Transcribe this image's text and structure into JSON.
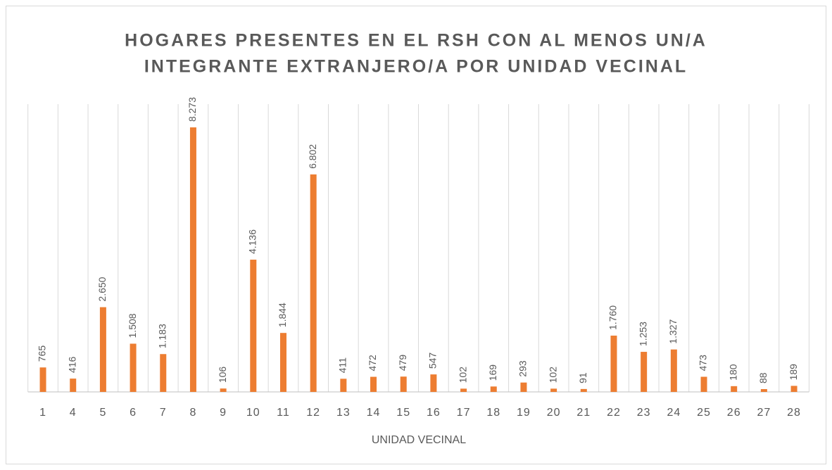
{
  "chart_data": {
    "type": "bar",
    "title": [
      "HOGARES PRESENTES EN EL RSH CON AL MENOS UN/A",
      "INTEGRANTE EXTRANJERO/A POR UNIDAD VECINAL"
    ],
    "x_label": "UNIDAD VECINAL",
    "categories": [
      "1",
      "4",
      "5",
      "6",
      "7",
      "8",
      "9",
      "10",
      "11",
      "12",
      "13",
      "14",
      "15",
      "16",
      "17",
      "18",
      "19",
      "20",
      "21",
      "22",
      "23",
      "24",
      "25",
      "26",
      "27",
      "28"
    ],
    "values": [
      765,
      416,
      2650,
      1508,
      1183,
      8273,
      106,
      4136,
      1844,
      6802,
      411,
      472,
      479,
      547,
      102,
      169,
      293,
      102,
      91,
      1760,
      1253,
      1327,
      473,
      180,
      88,
      189
    ],
    "value_labels": [
      "765",
      "416",
      "2.650",
      "1.508",
      "1.183",
      "8.273",
      "106",
      "4.136",
      "1.844",
      "6.802",
      "411",
      "472",
      "479",
      "547",
      "102",
      "169",
      "293",
      "102",
      "91",
      "1.760",
      "1.253",
      "1.327",
      "473",
      "180",
      "88",
      "189"
    ],
    "color": "#ed7d31",
    "ylim": [
      0,
      9000
    ],
    "grid": true
  }
}
